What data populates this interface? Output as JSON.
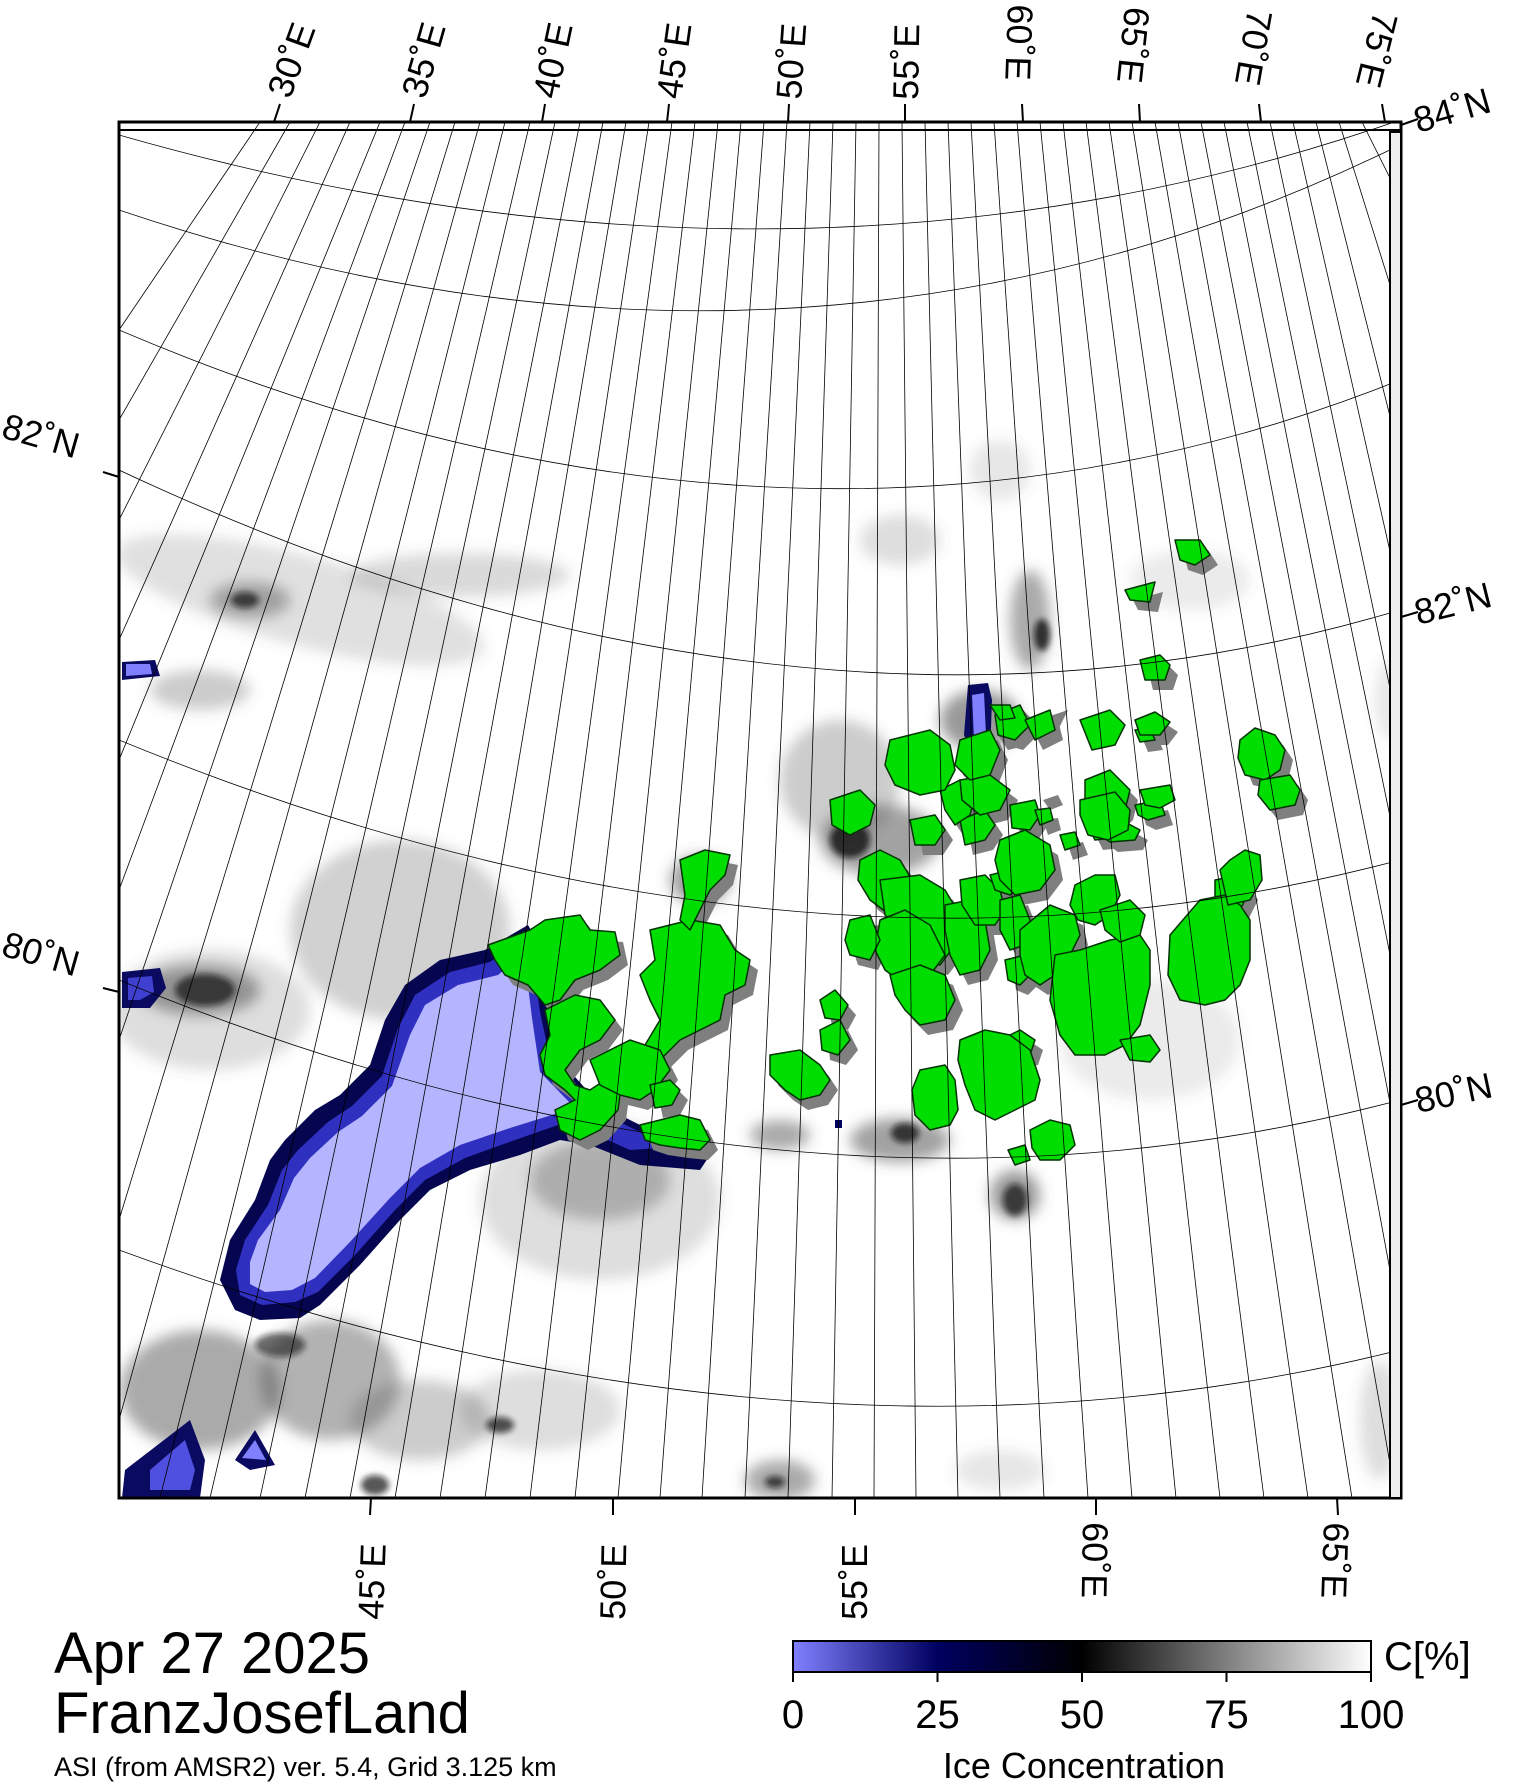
{
  "map": {
    "date": "Apr 27 2025",
    "region": "FranzJosefLand",
    "product": "ASI (from AMSR2) ver. 5.4,  Grid 3.125 km",
    "colors": {
      "land": "#00dd00",
      "land_shadow": "#7f7f7f",
      "low_ice": "#b4b4ff",
      "frame": "#000000"
    },
    "top_lon_labels": [
      "30˚E",
      "35˚E",
      "40˚E",
      "45˚E",
      "50˚E",
      "55˚E",
      "60˚E",
      "65˚E",
      "70˚E",
      "75˚E"
    ],
    "bottom_lon_labels": [
      "45˚E",
      "50˚E",
      "55˚E",
      "60˚E",
      "65˚E"
    ],
    "left_lat_labels": [
      "82˚N",
      "80˚N"
    ],
    "right_lat_labels": [
      "84˚N",
      "82˚N",
      "80˚N"
    ]
  },
  "legend": {
    "title": "Ice Concentration",
    "unit": "C[%]",
    "tick_labels": [
      "0",
      "25",
      "50",
      "75",
      "100"
    ],
    "range": [
      0,
      100
    ],
    "colors": [
      "#8080ff",
      "#000060",
      "#000000",
      "#7f7f7f",
      "#ffffff"
    ]
  }
}
